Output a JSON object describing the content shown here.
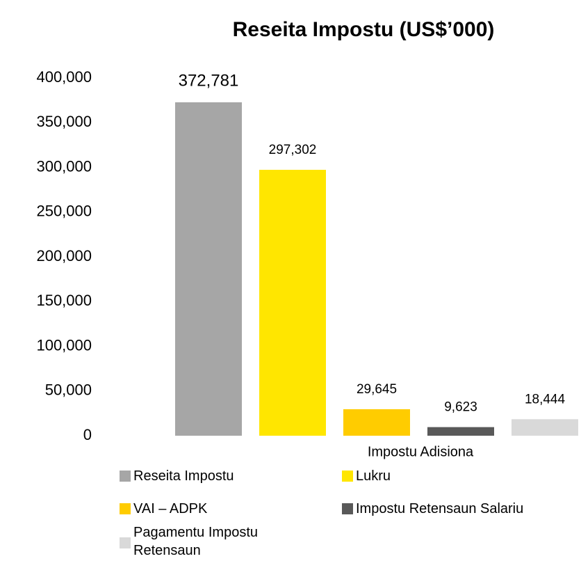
{
  "chart_data": {
    "type": "bar",
    "title": "Reseita Impostu (US$’000)",
    "categories": [
      "Impostu Adisiona"
    ],
    "series": [
      {
        "name": "Reseita Impostu",
        "color": "#a6a6a6",
        "values": [
          372781
        ],
        "value_labels": [
          "372,781"
        ]
      },
      {
        "name": "Lukru",
        "color": "#ffe600",
        "values": [
          297302
        ],
        "value_labels": [
          "297,302"
        ]
      },
      {
        "name": "VAI – ADPK",
        "color": "#ffcc00",
        "values": [
          29645
        ],
        "value_labels": [
          "29,645"
        ]
      },
      {
        "name": "Impostu Retensaun Salariu",
        "color": "#595959",
        "values": [
          9623
        ],
        "value_labels": [
          "9,623"
        ]
      },
      {
        "name": "Pagamentu Impostu Retensaun",
        "color": "#d9d9d9",
        "values": [
          18444
        ],
        "value_labels": [
          "18,444"
        ]
      }
    ],
    "ylim": [
      0,
      400000
    ],
    "yticks": [
      0,
      {
        "value": 50000,
        "label": "50,000"
      },
      {
        "value": 100000,
        "label": "100,000"
      },
      {
        "value": 150000,
        "label": "150,000"
      },
      {
        "value": 200000,
        "label": "200,000"
      },
      {
        "value": 250000,
        "label": "250,000"
      },
      {
        "value": 300000,
        "label": "300,000"
      },
      {
        "value": 350000,
        "label": "350,000"
      },
      {
        "value": 400000,
        "label": "400,000"
      }
    ],
    "grid": false
  }
}
